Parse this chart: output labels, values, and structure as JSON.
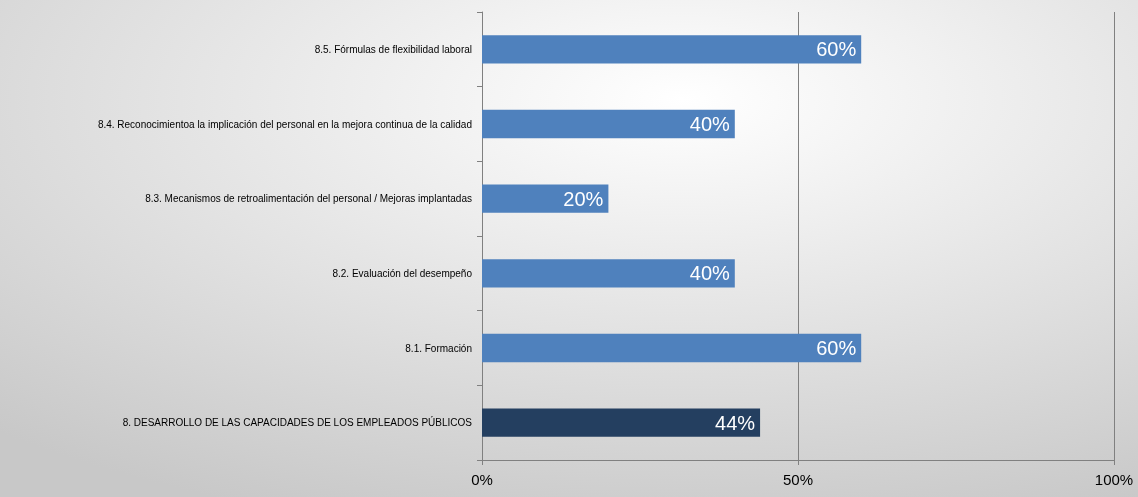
{
  "chart_data": {
    "type": "bar",
    "orientation": "horizontal",
    "categories": [
      "8.5. Fórmulas de flexibilidad laboral",
      "8.4. Reconocimientoa la implicación del personal en la mejora continua de la calidad",
      "8.3. Mecanismos de retroalimentación del personal / Mejoras implantadas",
      "8.2. Evaluación del desempeño",
      "8.1. Formación",
      "8. DESARROLLO DE LAS CAPACIDADES DE LOS EMPLEADOS PÚBLICOS"
    ],
    "values": [
      60,
      40,
      20,
      40,
      60,
      44
    ],
    "colors": [
      "#4f81bd",
      "#4f81bd",
      "#4f81bd",
      "#4f81bd",
      "#4f81bd",
      "#243f60"
    ],
    "value_labels": [
      "60%",
      "40%",
      "20%",
      "40%",
      "60%",
      "44%"
    ],
    "xlim": [
      0,
      100
    ],
    "xticks": [
      {
        "value": 0,
        "label": "0%"
      },
      {
        "value": 50,
        "label": "50%"
      },
      {
        "value": 100,
        "label": "100%"
      }
    ],
    "grid": "x"
  }
}
